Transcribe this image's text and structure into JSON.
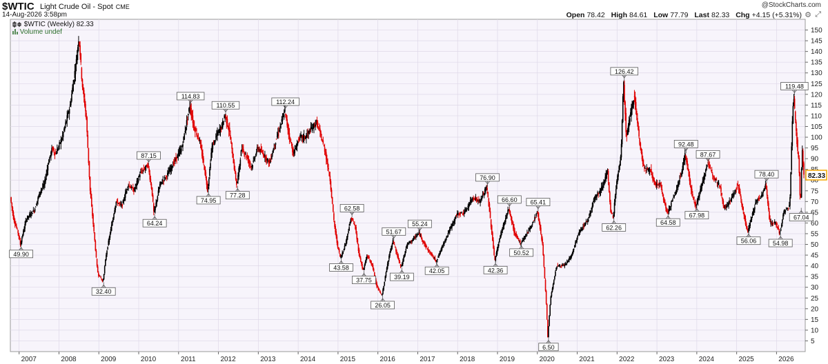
{
  "header": {
    "symbol": "$WTIC",
    "description": "Light Crude Oil - Spot",
    "exchange": "CME",
    "datetime": "14-Aug-2026 3:58pm",
    "watermark": "@StockCharts.com",
    "quote": {
      "open_label": "Open",
      "open": "78.42",
      "high_label": "High",
      "high": "84.61",
      "low_label": "Low",
      "low": "77.79",
      "last_label": "Last",
      "last": "82.33",
      "chg_label": "Chg",
      "chg": "+4.15 (+5.31%)"
    },
    "gear_icon": "gear-icon",
    "resize_icon": "resize-icon"
  },
  "legend": {
    "line1": "$WTIC (Weekly) 82.33",
    "line2": "Volume undef"
  },
  "chart_data": {
    "type": "candlestick",
    "title": "$WTIC Light Crude Oil - Spot (Weekly)",
    "y_axis_side": "right",
    "ylim": [
      0,
      155
    ],
    "y_ticks": [
      5,
      10,
      15,
      20,
      25,
      30,
      35,
      40,
      45,
      50,
      55,
      60,
      65,
      70,
      75,
      80,
      85,
      90,
      95,
      100,
      105,
      110,
      115,
      120,
      125,
      130,
      135,
      140,
      145,
      150
    ],
    "xlim": [
      2006.78,
      2026.72
    ],
    "x_ticks": [
      "2007",
      "2008",
      "2009",
      "2010",
      "2011",
      "2012",
      "2013",
      "2014",
      "2015",
      "2016",
      "2017",
      "2018",
      "2019",
      "2020",
      "2021",
      "2022",
      "2023",
      "2024",
      "2025",
      "2026"
    ],
    "last_price": "82.33",
    "colors": {
      "up": "#000000",
      "down": "#e00000",
      "last_box": "#f5a700"
    },
    "price_path": [
      [
        2006.8,
        72
      ],
      [
        2006.88,
        62
      ],
      [
        2007.0,
        55
      ],
      [
        2007.05,
        49.9
      ],
      [
        2007.2,
        62
      ],
      [
        2007.4,
        66
      ],
      [
        2007.55,
        75
      ],
      [
        2007.65,
        78
      ],
      [
        2007.75,
        88
      ],
      [
        2007.85,
        95
      ],
      [
        2007.93,
        92
      ],
      [
        2008.1,
        100
      ],
      [
        2008.3,
        115
      ],
      [
        2008.45,
        135
      ],
      [
        2008.52,
        147.27
      ],
      [
        2008.6,
        125
      ],
      [
        2008.7,
        110
      ],
      [
        2008.8,
        75
      ],
      [
        2008.9,
        55
      ],
      [
        2008.97,
        40
      ],
      [
        2009.0,
        36
      ],
      [
        2009.05,
        35
      ],
      [
        2009.12,
        32.4
      ],
      [
        2009.2,
        45
      ],
      [
        2009.35,
        60
      ],
      [
        2009.45,
        70
      ],
      [
        2009.6,
        68
      ],
      [
        2009.75,
        78
      ],
      [
        2009.9,
        75
      ],
      [
        2010.05,
        83
      ],
      [
        2010.25,
        87.15
      ],
      [
        2010.35,
        75
      ],
      [
        2010.4,
        64.24
      ],
      [
        2010.55,
        78
      ],
      [
        2010.75,
        83
      ],
      [
        2010.95,
        90
      ],
      [
        2011.1,
        95
      ],
      [
        2011.2,
        105
      ],
      [
        2011.3,
        114.83
      ],
      [
        2011.4,
        105
      ],
      [
        2011.55,
        98
      ],
      [
        2011.67,
        85
      ],
      [
        2011.75,
        74.95
      ],
      [
        2011.85,
        95
      ],
      [
        2012.0,
        102
      ],
      [
        2012.1,
        105
      ],
      [
        2012.18,
        110.55
      ],
      [
        2012.3,
        102
      ],
      [
        2012.42,
        85
      ],
      [
        2012.48,
        77.28
      ],
      [
        2012.6,
        95
      ],
      [
        2012.7,
        92
      ],
      [
        2012.85,
        86
      ],
      [
        2013.0,
        95
      ],
      [
        2013.15,
        92
      ],
      [
        2013.3,
        88
      ],
      [
        2013.45,
        98
      ],
      [
        2013.6,
        107
      ],
      [
        2013.68,
        112.24
      ],
      [
        2013.78,
        102
      ],
      [
        2013.9,
        92
      ],
      [
        2014.05,
        100
      ],
      [
        2014.2,
        100
      ],
      [
        2014.35,
        104
      ],
      [
        2014.48,
        107
      ],
      [
        2014.55,
        103
      ],
      [
        2014.7,
        93
      ],
      [
        2014.82,
        80
      ],
      [
        2014.92,
        60
      ],
      [
        2015.0,
        50
      ],
      [
        2015.08,
        43.58
      ],
      [
        2015.2,
        50
      ],
      [
        2015.35,
        62.58
      ],
      [
        2015.45,
        58
      ],
      [
        2015.55,
        45
      ],
      [
        2015.65,
        37.75
      ],
      [
        2015.75,
        45
      ],
      [
        2015.88,
        40
      ],
      [
        2016.0,
        30
      ],
      [
        2016.12,
        26.05
      ],
      [
        2016.3,
        45
      ],
      [
        2016.4,
        51.67
      ],
      [
        2016.5,
        45
      ],
      [
        2016.6,
        39.19
      ],
      [
        2016.75,
        50
      ],
      [
        2016.88,
        52
      ],
      [
        2017.05,
        55.24
      ],
      [
        2017.25,
        48
      ],
      [
        2017.45,
        43
      ],
      [
        2017.48,
        42.05
      ],
      [
        2017.7,
        52
      ],
      [
        2017.85,
        58
      ],
      [
        2018.0,
        64
      ],
      [
        2018.2,
        65
      ],
      [
        2018.4,
        72
      ],
      [
        2018.58,
        70
      ],
      [
        2018.75,
        76.9
      ],
      [
        2018.85,
        60
      ],
      [
        2018.95,
        42.36
      ],
      [
        2019.1,
        55
      ],
      [
        2019.3,
        66.6
      ],
      [
        2019.45,
        55
      ],
      [
        2019.6,
        50.52
      ],
      [
        2019.75,
        55
      ],
      [
        2019.9,
        60
      ],
      [
        2020.02,
        65.41
      ],
      [
        2020.15,
        50
      ],
      [
        2020.25,
        20
      ],
      [
        2020.28,
        6.5
      ],
      [
        2020.35,
        25
      ],
      [
        2020.5,
        40
      ],
      [
        2020.7,
        40
      ],
      [
        2020.88,
        45
      ],
      [
        2021.05,
        55
      ],
      [
        2021.3,
        62
      ],
      [
        2021.45,
        72
      ],
      [
        2021.6,
        75
      ],
      [
        2021.78,
        84
      ],
      [
        2021.85,
        66
      ],
      [
        2021.92,
        62.26
      ],
      [
        2022.0,
        78
      ],
      [
        2022.12,
        92
      ],
      [
        2022.18,
        126.42
      ],
      [
        2022.25,
        100
      ],
      [
        2022.35,
        110
      ],
      [
        2022.45,
        120
      ],
      [
        2022.6,
        95
      ],
      [
        2022.7,
        85
      ],
      [
        2022.85,
        85
      ],
      [
        2022.95,
        78
      ],
      [
        2023.1,
        78
      ],
      [
        2023.25,
        66
      ],
      [
        2023.28,
        64.58
      ],
      [
        2023.5,
        75
      ],
      [
        2023.65,
        85
      ],
      [
        2023.73,
        92.48
      ],
      [
        2023.85,
        78
      ],
      [
        2023.95,
        70
      ],
      [
        2024.0,
        67.98
      ],
      [
        2024.15,
        78
      ],
      [
        2024.28,
        87.67
      ],
      [
        2024.5,
        80
      ],
      [
        2024.6,
        77
      ],
      [
        2024.7,
        67
      ],
      [
        2024.85,
        70
      ],
      [
        2025.05,
        78
      ],
      [
        2025.25,
        59
      ],
      [
        2025.3,
        56.06
      ],
      [
        2025.5,
        70
      ],
      [
        2025.65,
        73
      ],
      [
        2025.75,
        78.4
      ],
      [
        2025.85,
        60
      ],
      [
        2026.0,
        60
      ],
      [
        2026.1,
        54.98
      ],
      [
        2026.2,
        65
      ],
      [
        2026.35,
        68
      ],
      [
        2026.42,
        110
      ],
      [
        2026.45,
        119.48
      ],
      [
        2026.52,
        100
      ],
      [
        2026.58,
        88
      ],
      [
        2026.62,
        67.04
      ],
      [
        2026.66,
        95
      ],
      [
        2026.7,
        82.33
      ]
    ],
    "annotations": [
      {
        "x": 2007.05,
        "y": 49.9,
        "label": "49.90",
        "pos": "below"
      },
      {
        "x": 2009.12,
        "y": 32.4,
        "label": "32.40",
        "pos": "below"
      },
      {
        "x": 2010.25,
        "y": 87.15,
        "label": "87.15",
        "pos": "above"
      },
      {
        "x": 2010.4,
        "y": 64.24,
        "label": "64.24",
        "pos": "below"
      },
      {
        "x": 2011.3,
        "y": 114.83,
        "label": "114.83",
        "pos": "above"
      },
      {
        "x": 2011.75,
        "y": 74.95,
        "label": "74.95",
        "pos": "below"
      },
      {
        "x": 2012.18,
        "y": 110.55,
        "label": "110.55",
        "pos": "above"
      },
      {
        "x": 2012.48,
        "y": 77.28,
        "label": "77.28",
        "pos": "below"
      },
      {
        "x": 2013.68,
        "y": 112.24,
        "label": "112.24",
        "pos": "above"
      },
      {
        "x": 2015.08,
        "y": 43.58,
        "label": "43.58",
        "pos": "below"
      },
      {
        "x": 2015.35,
        "y": 62.58,
        "label": "62.58",
        "pos": "above"
      },
      {
        "x": 2015.65,
        "y": 37.75,
        "label": "37.75",
        "pos": "below"
      },
      {
        "x": 2016.12,
        "y": 26.05,
        "label": "26.05",
        "pos": "below"
      },
      {
        "x": 2016.4,
        "y": 51.67,
        "label": "51.67",
        "pos": "above"
      },
      {
        "x": 2016.6,
        "y": 39.19,
        "label": "39.19",
        "pos": "below"
      },
      {
        "x": 2017.05,
        "y": 55.24,
        "label": "55.24",
        "pos": "above"
      },
      {
        "x": 2017.48,
        "y": 42.05,
        "label": "42.05",
        "pos": "below"
      },
      {
        "x": 2018.75,
        "y": 76.9,
        "label": "76.90",
        "pos": "above"
      },
      {
        "x": 2018.95,
        "y": 42.36,
        "label": "42.36",
        "pos": "below"
      },
      {
        "x": 2019.3,
        "y": 66.6,
        "label": "66.60",
        "pos": "above"
      },
      {
        "x": 2019.6,
        "y": 50.52,
        "label": "50.52",
        "pos": "below"
      },
      {
        "x": 2020.02,
        "y": 65.41,
        "label": "65.41",
        "pos": "above"
      },
      {
        "x": 2020.28,
        "y": 6.5,
        "label": "6.50",
        "pos": "below"
      },
      {
        "x": 2021.92,
        "y": 62.26,
        "label": "62.26",
        "pos": "below"
      },
      {
        "x": 2022.18,
        "y": 126.42,
        "label": "126.42",
        "pos": "above"
      },
      {
        "x": 2023.28,
        "y": 64.58,
        "label": "64.58",
        "pos": "below"
      },
      {
        "x": 2023.73,
        "y": 92.48,
        "label": "92.48",
        "pos": "above"
      },
      {
        "x": 2024.0,
        "y": 67.98,
        "label": "67.98",
        "pos": "below"
      },
      {
        "x": 2024.28,
        "y": 87.67,
        "label": "87.67",
        "pos": "above"
      },
      {
        "x": 2025.3,
        "y": 56.06,
        "label": "56.06",
        "pos": "below"
      },
      {
        "x": 2025.75,
        "y": 78.4,
        "label": "78.40",
        "pos": "above"
      },
      {
        "x": 2026.1,
        "y": 54.98,
        "label": "54.98",
        "pos": "below"
      },
      {
        "x": 2026.45,
        "y": 119.48,
        "label": "119.48",
        "pos": "above"
      },
      {
        "x": 2026.62,
        "y": 67.04,
        "label": "67.04",
        "pos": "below"
      }
    ]
  }
}
